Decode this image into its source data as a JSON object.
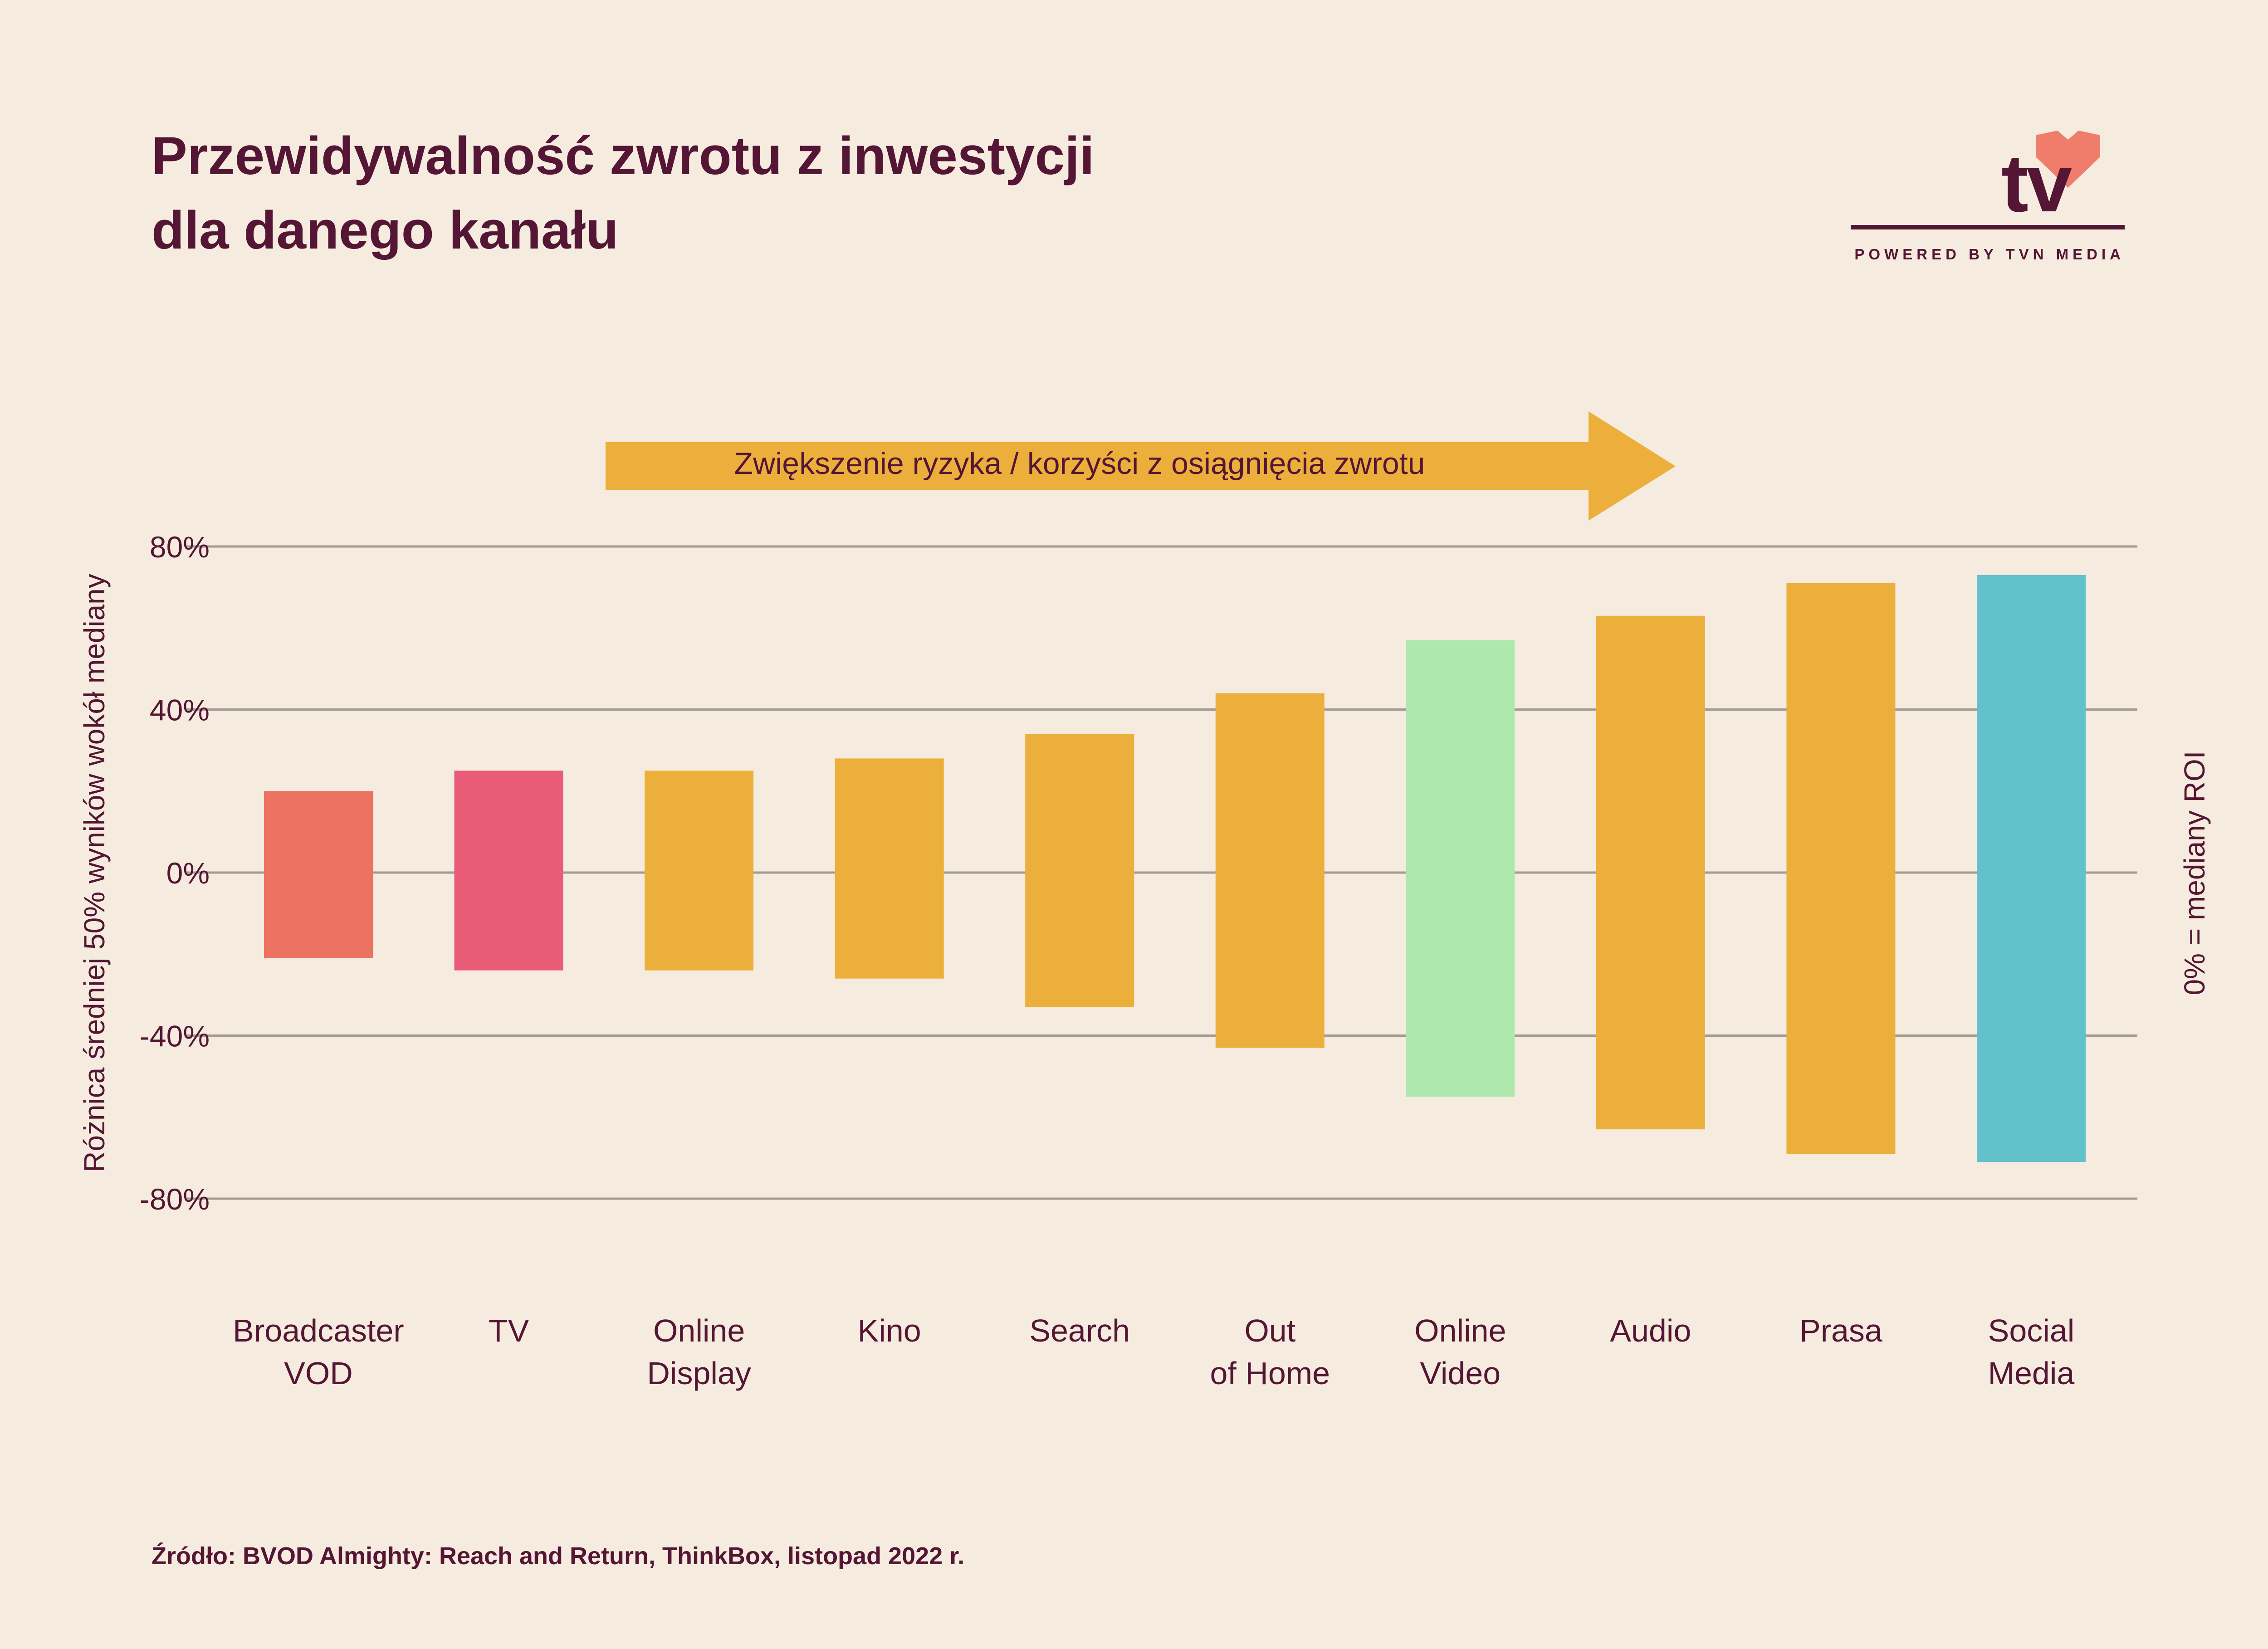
{
  "title": {
    "line1": "Przewidywalność zwrotu z inwestycji",
    "line2": "dla danego kanału"
  },
  "logo": {
    "text": "tv",
    "tagline": "POWERED BY TVN MEDIA",
    "icon": "heart-icon",
    "accent_color": "#f07c6c"
  },
  "source": "Źródło: BVOD Almighty: Reach and Return, ThinkBox, listopad 2022 r.",
  "colors": {
    "background": "#f5ecdf",
    "text": "#541634",
    "grid": "#a39c96",
    "arrow": "#edaf3b"
  },
  "chart_data": {
    "type": "bar",
    "subtype": "floating-range",
    "arrow_label": "Zwiększenie ryzyka / korzyści z osiągnięcia zwrotu",
    "ylabel": "Różnica średniej 50% wyników wokół mediany",
    "right_label": "0% = mediany ROI",
    "ylim": [
      -80,
      80
    ],
    "yticks": [
      80,
      40,
      0,
      -40,
      -80
    ],
    "ytick_labels": [
      "80%",
      "40%",
      "0%",
      "-40%",
      "-80%"
    ],
    "grid": true,
    "categories": [
      [
        "Broadcaster",
        "VOD"
      ],
      [
        "TV"
      ],
      [
        "Online",
        "Display"
      ],
      [
        "Kino"
      ],
      [
        "Search"
      ],
      [
        "Out",
        "of Home"
      ],
      [
        "Online",
        "Video"
      ],
      [
        "Audio"
      ],
      [
        "Prasa"
      ],
      [
        "Social",
        "Media"
      ]
    ],
    "upper": [
      20,
      25,
      25,
      28,
      34,
      44,
      57,
      63,
      71,
      73
    ],
    "lower": [
      -21,
      -24,
      -24,
      -26,
      -33,
      -43,
      -55,
      -63,
      -69,
      -71
    ],
    "bar_colors": [
      "#ee7261",
      "#ea5b78",
      "#edaf3b",
      "#edaf3b",
      "#edaf3b",
      "#edaf3b",
      "#aee8ad",
      "#edaf3b",
      "#edaf3b",
      "#62c1cb"
    ]
  }
}
